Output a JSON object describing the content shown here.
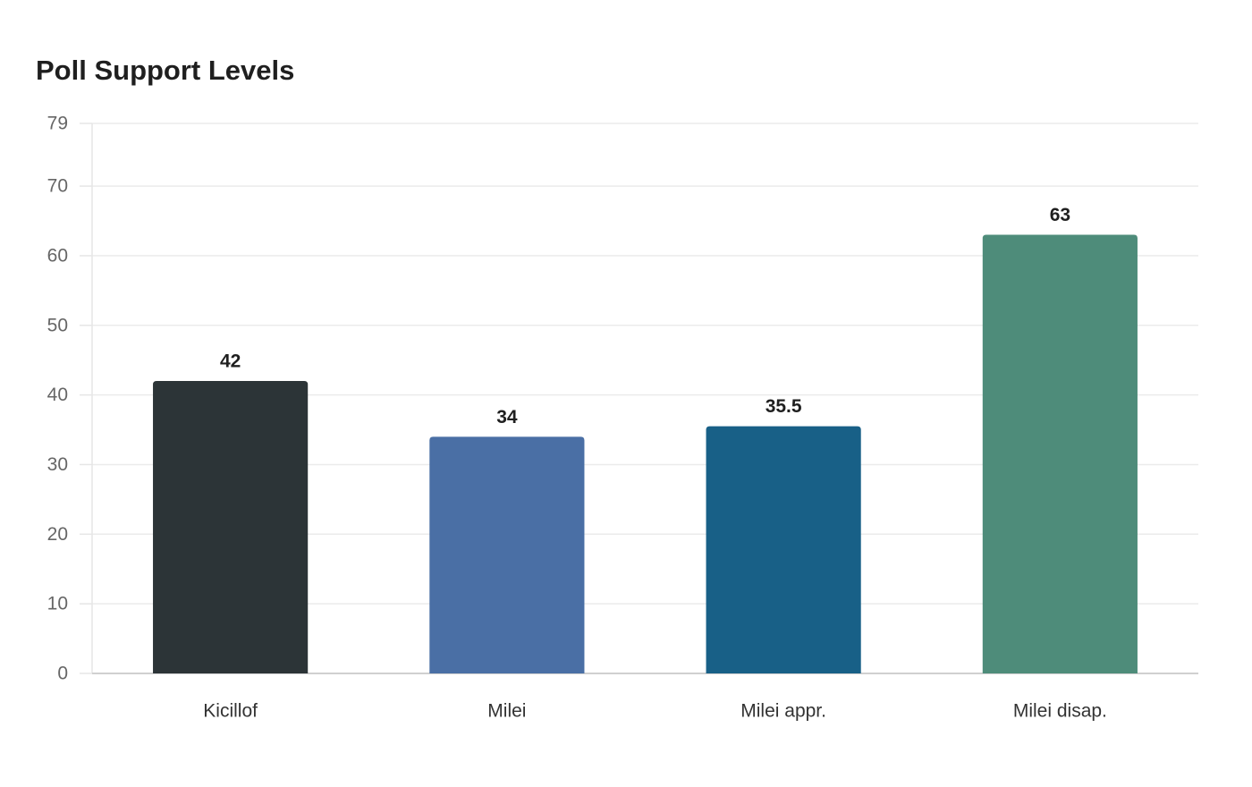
{
  "chart_data": {
    "type": "bar",
    "title": "Poll Support Levels",
    "xlabel": "",
    "ylabel": "",
    "categories": [
      "Kicillof",
      "Milei",
      "Milei appr.",
      "Milei disap."
    ],
    "values": [
      42,
      34,
      35.5,
      63
    ],
    "value_labels": [
      "42",
      "34",
      "35.5",
      "63"
    ],
    "colors": [
      "#2c3437",
      "#4a6fa5",
      "#186087",
      "#4e8c7a"
    ],
    "ylim": [
      0,
      79
    ],
    "yticks": [
      0,
      10,
      20,
      30,
      40,
      50,
      60,
      70,
      79
    ],
    "grid": true,
    "legend": "none"
  }
}
